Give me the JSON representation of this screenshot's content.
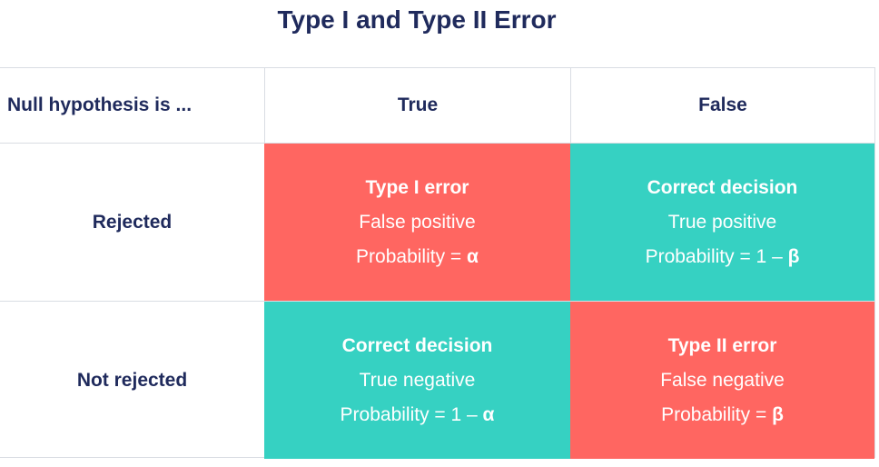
{
  "title": "Type I and Type II Error",
  "header": {
    "row_label": "Null hypothesis is ...",
    "col_true": "True",
    "col_false": "False"
  },
  "rows": [
    {
      "label": "Rejected",
      "cells": [
        {
          "name": "Type I error",
          "desc": "False positive",
          "prob_prefix": "Probability = ",
          "prob_symbol": "α",
          "color": "#ff6661"
        },
        {
          "name": "Correct decision",
          "desc": "True positive",
          "prob_prefix": "Probability = 1 – ",
          "prob_symbol": "β",
          "color": "#36d1c2"
        }
      ]
    },
    {
      "label": "Not rejected",
      "cells": [
        {
          "name": "Correct decision",
          "desc": "True negative",
          "prob_prefix": "Probability = 1 – ",
          "prob_symbol": "α",
          "color": "#36d1c2"
        },
        {
          "name": "Type II error",
          "desc": "False negative",
          "prob_prefix": "Probability = ",
          "prob_symbol": "β",
          "color": "#ff6661"
        }
      ]
    }
  ],
  "colors": {
    "text": "#1f2a5c",
    "error": "#ff6661",
    "correct": "#36d1c2",
    "border": "#d9dde3"
  }
}
